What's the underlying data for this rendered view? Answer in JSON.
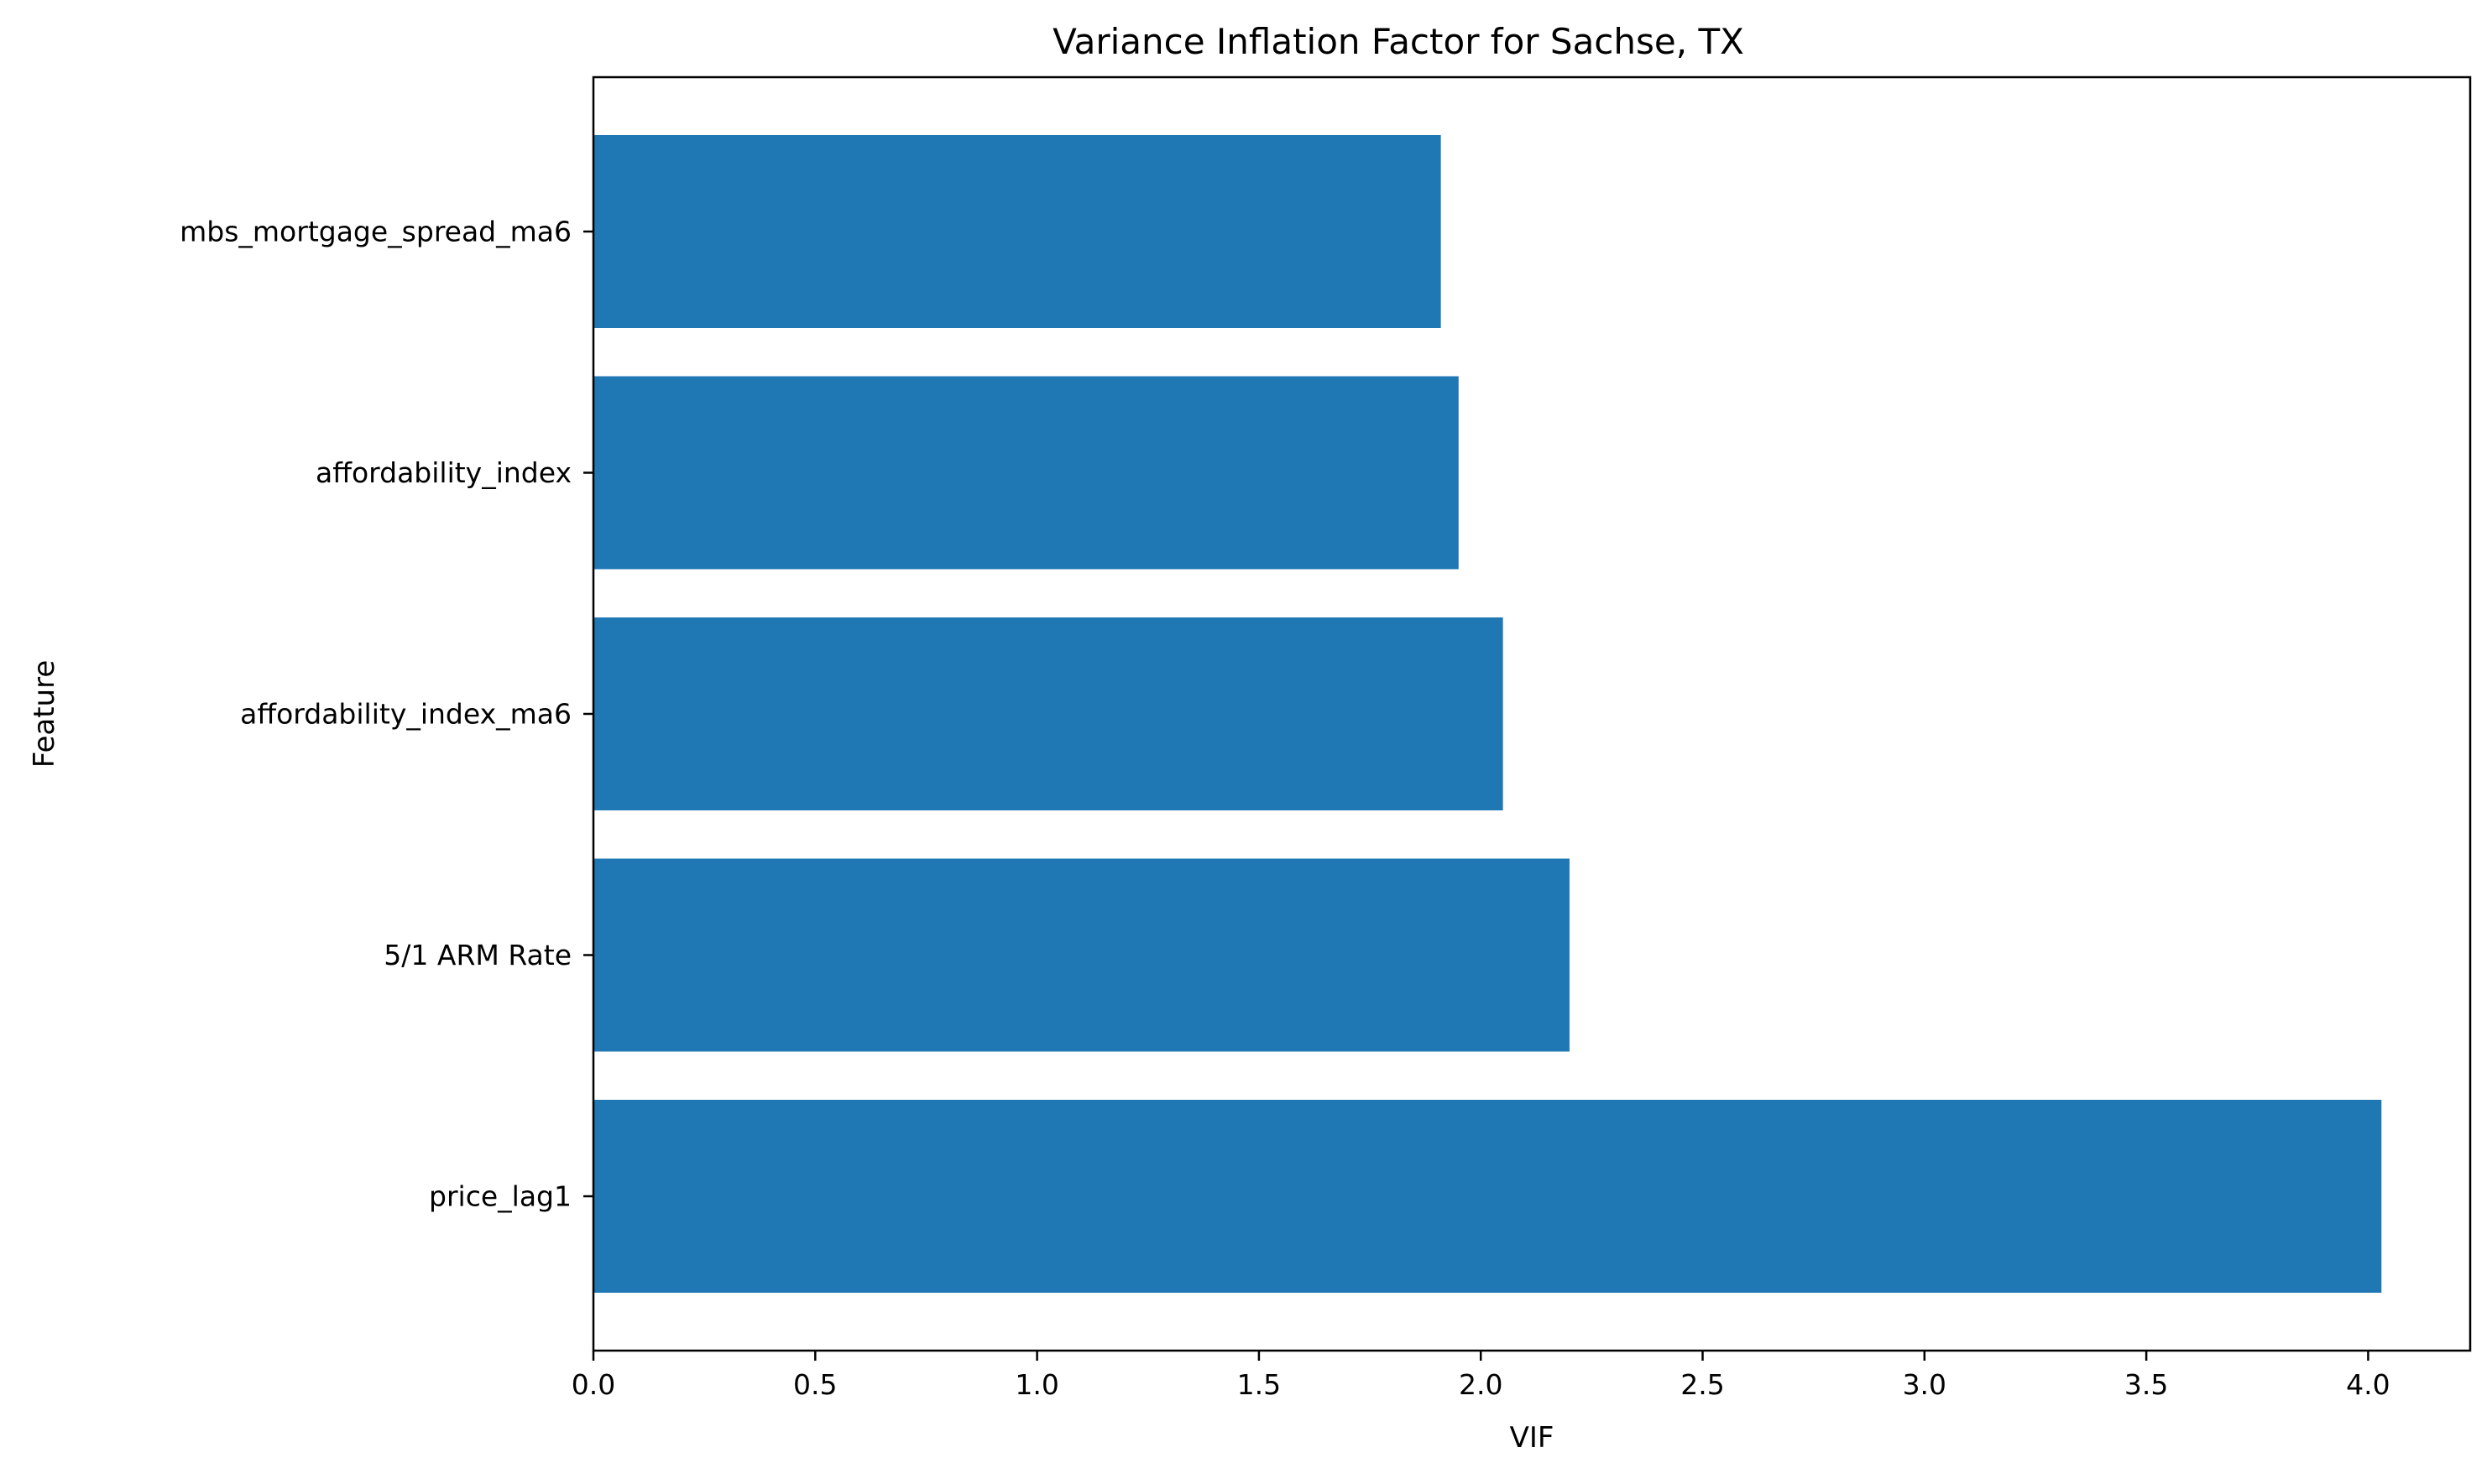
{
  "chart_data": {
    "type": "bar",
    "orientation": "horizontal",
    "title": "Variance Inflation Factor for Sachse, TX",
    "xlabel": "VIF",
    "ylabel": "Feature",
    "categories": [
      "price_lag1",
      "5/1 ARM Rate",
      "affordability_index_ma6",
      "affordability_index",
      "mbs_mortgage_spread_ma6"
    ],
    "values": [
      4.03,
      2.2,
      2.05,
      1.95,
      1.91
    ],
    "xlim": [
      0,
      4.23
    ],
    "xticks": [
      "0.0",
      "0.5",
      "1.0",
      "1.5",
      "2.0",
      "2.5",
      "3.0",
      "3.5",
      "4.0"
    ],
    "bar_color": "#1f77b4",
    "grid": false,
    "legend": false
  }
}
